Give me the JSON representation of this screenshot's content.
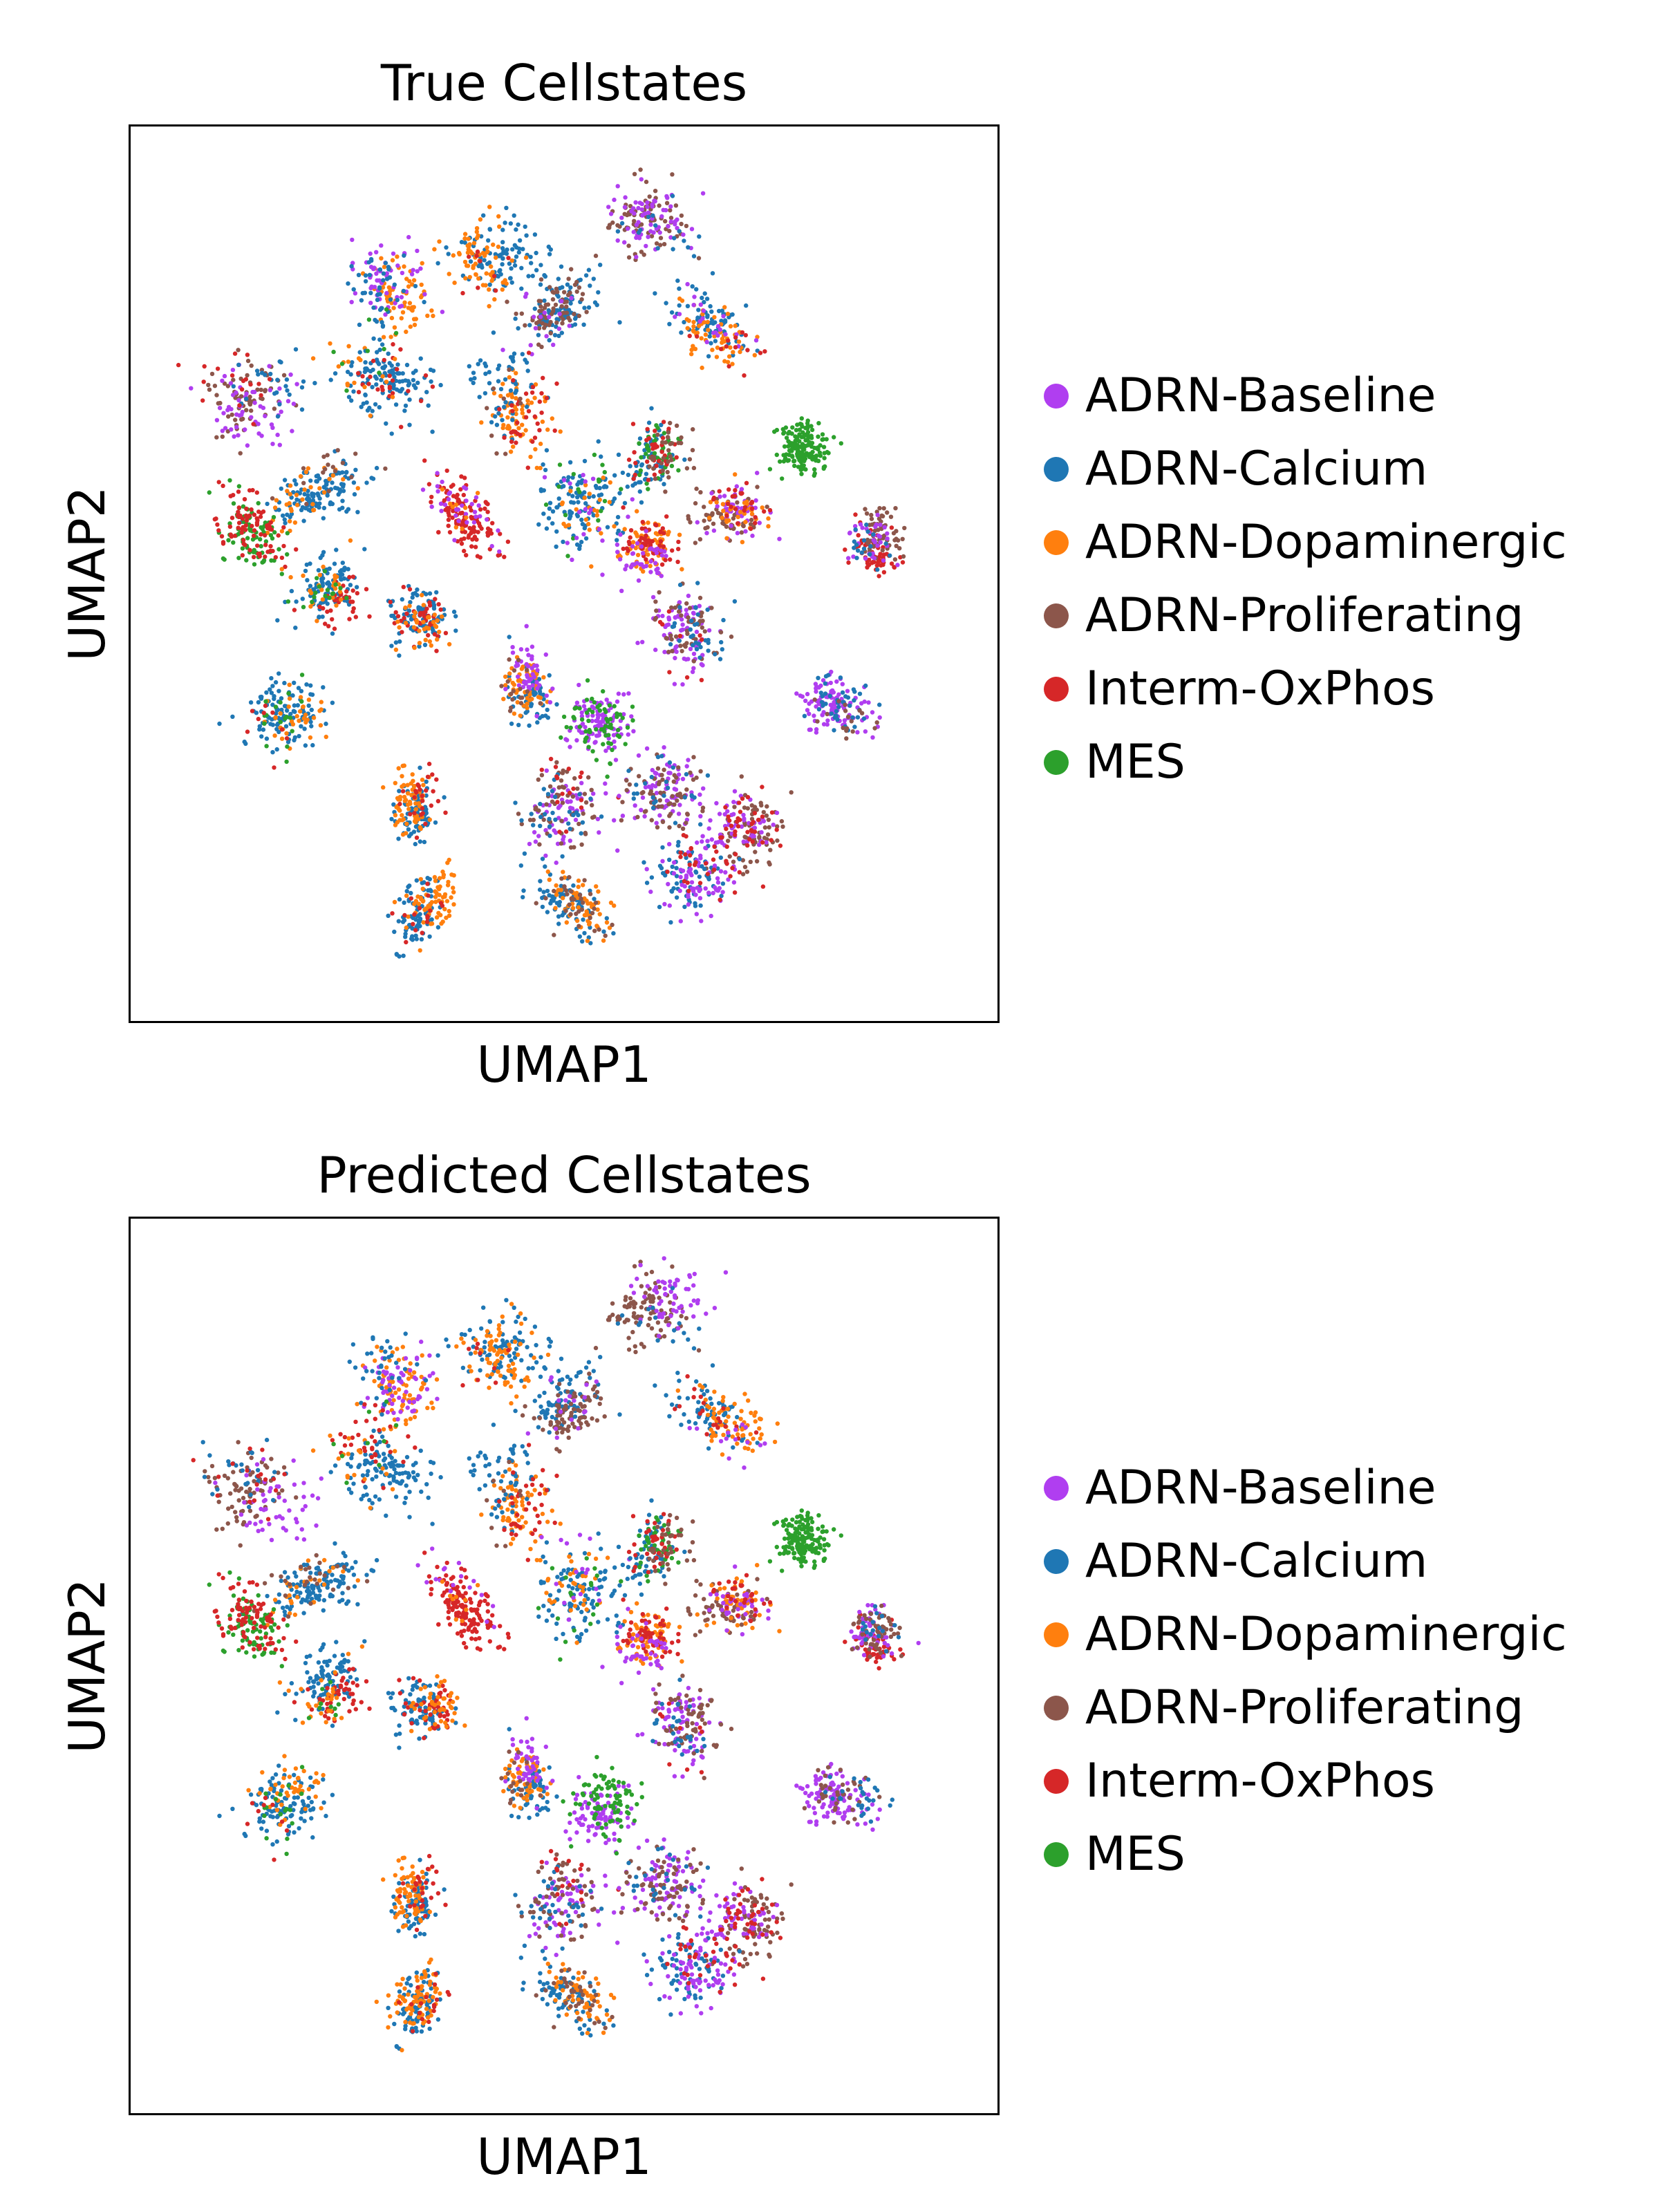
{
  "chart_data": [
    {
      "type": "scatter",
      "title": "True Cellstates",
      "xlabel": "UMAP1",
      "ylabel": "UMAP2",
      "xticks": [],
      "yticks": [],
      "grid": false,
      "legend_position": "right",
      "categories": [
        "ADRN-Baseline",
        "ADRN-Calcium",
        "ADRN-Dopaminergic",
        "ADRN-Proliferating",
        "Interm-OxPhos",
        "MES"
      ],
      "colors": [
        "#b03ef0",
        "#1f77b4",
        "#ff7f0e",
        "#8c564b",
        "#d62728",
        "#2ca02c"
      ],
      "xlim": [
        0,
        100
      ],
      "ylim": [
        0,
        100
      ],
      "clusters": [
        {
          "x": 62,
          "y": 94,
          "composition": {
            "ADRN-Proliferating": 0.5,
            "ADRN-Baseline": 0.4,
            "ADRN-Calcium": 0.1
          }
        },
        {
          "x": 41,
          "y": 89,
          "composition": {
            "ADRN-Calcium": 0.55,
            "ADRN-Dopaminergic": 0.4,
            "Interm-OxPhos": 0.05
          }
        },
        {
          "x": 27,
          "y": 85,
          "composition": {
            "ADRN-Dopaminergic": 0.4,
            "ADRN-Baseline": 0.35,
            "ADRN-Calcium": 0.25
          }
        },
        {
          "x": 50,
          "y": 82,
          "composition": {
            "ADRN-Calcium": 0.5,
            "ADRN-Proliferating": 0.4,
            "ADRN-Baseline": 0.1
          }
        },
        {
          "x": 70,
          "y": 80,
          "composition": {
            "ADRN-Calcium": 0.45,
            "ADRN-Dopaminergic": 0.35,
            "ADRN-Baseline": 0.12,
            "Interm-OxPhos": 0.08
          }
        },
        {
          "x": 26,
          "y": 75,
          "composition": {
            "ADRN-Calcium": 0.7,
            "Interm-OxPhos": 0.15,
            "ADRN-Dopaminergic": 0.1,
            "MES": 0.05
          }
        },
        {
          "x": 11,
          "y": 72,
          "composition": {
            "ADRN-Proliferating": 0.4,
            "ADRN-Baseline": 0.35,
            "ADRN-Calcium": 0.15,
            "Interm-OxPhos": 0.1
          }
        },
        {
          "x": 44,
          "y": 71,
          "composition": {
            "ADRN-Dopaminergic": 0.4,
            "ADRN-Calcium": 0.35,
            "Interm-OxPhos": 0.2,
            "ADRN-Proliferating": 0.05
          }
        },
        {
          "x": 18,
          "y": 61,
          "composition": {
            "ADRN-Calcium": 0.7,
            "ADRN-Dopaminergic": 0.2,
            "ADRN-Proliferating": 0.1
          }
        },
        {
          "x": 36,
          "y": 59,
          "composition": {
            "Interm-OxPhos": 0.75,
            "ADRN-Baseline": 0.2,
            "ADRN-Dopaminergic": 0.05
          }
        },
        {
          "x": 52,
          "y": 60,
          "composition": {
            "ADRN-Calcium": 0.65,
            "ADRN-Dopaminergic": 0.15,
            "MES": 0.1,
            "ADRN-Baseline": 0.1
          }
        },
        {
          "x": 62,
          "y": 65,
          "composition": {
            "ADRN-Calcium": 0.35,
            "MES": 0.25,
            "Interm-OxPhos": 0.2,
            "ADRN-Proliferating": 0.2
          }
        },
        {
          "x": 71,
          "y": 58,
          "composition": {
            "ADRN-Proliferating": 0.35,
            "ADRN-Baseline": 0.3,
            "ADRN-Dopaminergic": 0.2,
            "Interm-OxPhos": 0.15
          }
        },
        {
          "x": 80,
          "y": 66,
          "composition": {
            "MES": 1.0
          }
        },
        {
          "x": 90,
          "y": 54,
          "composition": {
            "Interm-OxPhos": 0.35,
            "ADRN-Proliferating": 0.35,
            "ADRN-Baseline": 0.2,
            "ADRN-Calcium": 0.1
          }
        },
        {
          "x": 10,
          "y": 55,
          "composition": {
            "MES": 0.5,
            "Interm-OxPhos": 0.5
          }
        },
        {
          "x": 20,
          "y": 47,
          "composition": {
            "ADRN-Calcium": 0.55,
            "Interm-OxPhos": 0.2,
            "ADRN-Dopaminergic": 0.15,
            "MES": 0.1
          }
        },
        {
          "x": 33,
          "y": 45,
          "composition": {
            "ADRN-Calcium": 0.55,
            "Interm-OxPhos": 0.25,
            "ADRN-Dopaminergic": 0.2
          }
        },
        {
          "x": 61,
          "y": 53,
          "composition": {
            "ADRN-Dopaminergic": 0.4,
            "Interm-OxPhos": 0.35,
            "ADRN-Baseline": 0.25
          }
        },
        {
          "x": 45,
          "y": 36,
          "composition": {
            "ADRN-Calcium": 0.35,
            "ADRN-Dopaminergic": 0.3,
            "ADRN-Baseline": 0.25,
            "ADRN-Proliferating": 0.1
          }
        },
        {
          "x": 66,
          "y": 42,
          "composition": {
            "ADRN-Baseline": 0.45,
            "ADRN-Proliferating": 0.3,
            "ADRN-Calcium": 0.2,
            "Interm-OxPhos": 0.05
          }
        },
        {
          "x": 15,
          "y": 32,
          "composition": {
            "ADRN-Calcium": 0.65,
            "ADRN-Dopaminergic": 0.2,
            "MES": 0.1,
            "Interm-OxPhos": 0.05
          }
        },
        {
          "x": 54,
          "y": 33,
          "composition": {
            "ADRN-Baseline": 0.6,
            "MES": 0.4
          }
        },
        {
          "x": 85,
          "y": 34,
          "composition": {
            "ADRN-Baseline": 0.65,
            "ADRN-Calcium": 0.25,
            "ADRN-Proliferating": 0.1
          }
        },
        {
          "x": 31,
          "y": 22,
          "composition": {
            "ADRN-Calcium": 0.45,
            "ADRN-Dopaminergic": 0.4,
            "Interm-OxPhos": 0.15
          }
        },
        {
          "x": 50,
          "y": 22,
          "composition": {
            "ADRN-Baseline": 0.35,
            "ADRN-Proliferating": 0.35,
            "ADRN-Calcium": 0.2,
            "Interm-OxPhos": 0.1
          }
        },
        {
          "x": 64,
          "y": 22,
          "composition": {
            "ADRN-Baseline": 0.45,
            "ADRN-Proliferating": 0.4,
            "ADRN-Calcium": 0.15
          }
        },
        {
          "x": 74,
          "y": 19,
          "composition": {
            "ADRN-Proliferating": 0.45,
            "ADRN-Baseline": 0.35,
            "Interm-OxPhos": 0.2
          }
        },
        {
          "x": 52,
          "y": 10,
          "composition": {
            "ADRN-Calcium": 0.45,
            "ADRN-Dopaminergic": 0.35,
            "ADRN-Proliferating": 0.2
          }
        },
        {
          "x": 32,
          "y": 9,
          "composition": {
            "ADRN-Calcium": 0.5,
            "ADRN-Dopaminergic": 0.4,
            "Interm-OxPhos": 0.1
          }
        },
        {
          "x": 66,
          "y": 12,
          "composition": {
            "ADRN-Calcium": 0.4,
            "ADRN-Baseline": 0.4,
            "Interm-OxPhos": 0.2
          }
        }
      ]
    },
    {
      "type": "scatter",
      "title": "Predicted Cellstates",
      "xlabel": "UMAP1",
      "ylabel": "UMAP2",
      "xticks": [],
      "yticks": [],
      "grid": false,
      "legend_position": "right",
      "categories": [
        "ADRN-Baseline",
        "ADRN-Calcium",
        "ADRN-Dopaminergic",
        "ADRN-Proliferating",
        "Interm-OxPhos",
        "MES"
      ],
      "colors": [
        "#b03ef0",
        "#1f77b4",
        "#ff7f0e",
        "#8c564b",
        "#d62728",
        "#2ca02c"
      ],
      "xlim": [
        0,
        100
      ],
      "ylim": [
        0,
        100
      ],
      "clusters": [
        {
          "x": 62,
          "y": 94,
          "composition": {
            "ADRN-Proliferating": 0.55,
            "ADRN-Baseline": 0.35,
            "ADRN-Calcium": 0.1
          }
        },
        {
          "x": 41,
          "y": 89,
          "composition": {
            "ADRN-Calcium": 0.5,
            "ADRN-Dopaminergic": 0.45,
            "Interm-OxPhos": 0.05
          }
        },
        {
          "x": 27,
          "y": 85,
          "composition": {
            "ADRN-Dopaminergic": 0.45,
            "ADRN-Baseline": 0.35,
            "ADRN-Calcium": 0.2
          }
        },
        {
          "x": 50,
          "y": 82,
          "composition": {
            "ADRN-Calcium": 0.45,
            "ADRN-Proliferating": 0.45,
            "ADRN-Baseline": 0.1
          }
        },
        {
          "x": 70,
          "y": 80,
          "composition": {
            "ADRN-Calcium": 0.4,
            "ADRN-Dopaminergic": 0.4,
            "Interm-OxPhos": 0.12,
            "ADRN-Baseline": 0.08
          }
        },
        {
          "x": 26,
          "y": 75,
          "composition": {
            "ADRN-Calcium": 0.65,
            "Interm-OxPhos": 0.2,
            "ADRN-Dopaminergic": 0.1,
            "MES": 0.05
          }
        },
        {
          "x": 11,
          "y": 72,
          "composition": {
            "ADRN-Proliferating": 0.45,
            "ADRN-Baseline": 0.3,
            "ADRN-Calcium": 0.15,
            "Interm-OxPhos": 0.1
          }
        },
        {
          "x": 44,
          "y": 71,
          "composition": {
            "ADRN-Dopaminergic": 0.4,
            "ADRN-Calcium": 0.35,
            "Interm-OxPhos": 0.2,
            "ADRN-Proliferating": 0.05
          }
        },
        {
          "x": 18,
          "y": 61,
          "composition": {
            "ADRN-Calcium": 0.7,
            "ADRN-Dopaminergic": 0.15,
            "ADRN-Proliferating": 0.15
          }
        },
        {
          "x": 36,
          "y": 59,
          "composition": {
            "Interm-OxPhos": 0.85,
            "ADRN-Baseline": 0.1,
            "ADRN-Dopaminergic": 0.05
          }
        },
        {
          "x": 52,
          "y": 60,
          "composition": {
            "ADRN-Calcium": 0.6,
            "ADRN-Dopaminergic": 0.2,
            "MES": 0.1,
            "ADRN-Baseline": 0.1
          }
        },
        {
          "x": 62,
          "y": 65,
          "composition": {
            "ADRN-Calcium": 0.35,
            "MES": 0.25,
            "Interm-OxPhos": 0.2,
            "ADRN-Proliferating": 0.2
          }
        },
        {
          "x": 71,
          "y": 58,
          "composition": {
            "ADRN-Proliferating": 0.35,
            "ADRN-Dopaminergic": 0.3,
            "ADRN-Baseline": 0.2,
            "Interm-OxPhos": 0.15
          }
        },
        {
          "x": 80,
          "y": 66,
          "composition": {
            "MES": 1.0
          }
        },
        {
          "x": 90,
          "y": 54,
          "composition": {
            "Interm-OxPhos": 0.3,
            "ADRN-Baseline": 0.3,
            "ADRN-Proliferating": 0.3,
            "ADRN-Calcium": 0.1
          }
        },
        {
          "x": 10,
          "y": 55,
          "composition": {
            "MES": 0.5,
            "Interm-OxPhos": 0.5
          }
        },
        {
          "x": 20,
          "y": 47,
          "composition": {
            "ADRN-Calcium": 0.55,
            "Interm-OxPhos": 0.25,
            "ADRN-Dopaminergic": 0.15,
            "MES": 0.05
          }
        },
        {
          "x": 33,
          "y": 45,
          "composition": {
            "ADRN-Calcium": 0.5,
            "Interm-OxPhos": 0.25,
            "ADRN-Dopaminergic": 0.25
          }
        },
        {
          "x": 61,
          "y": 53,
          "composition": {
            "ADRN-Dopaminergic": 0.4,
            "Interm-OxPhos": 0.35,
            "ADRN-Baseline": 0.25
          }
        },
        {
          "x": 45,
          "y": 36,
          "composition": {
            "ADRN-Calcium": 0.35,
            "ADRN-Dopaminergic": 0.3,
            "ADRN-Baseline": 0.25,
            "ADRN-Proliferating": 0.1
          }
        },
        {
          "x": 66,
          "y": 42,
          "composition": {
            "ADRN-Baseline": 0.45,
            "ADRN-Proliferating": 0.35,
            "ADRN-Calcium": 0.15,
            "Interm-OxPhos": 0.05
          }
        },
        {
          "x": 15,
          "y": 32,
          "composition": {
            "ADRN-Calcium": 0.6,
            "ADRN-Dopaminergic": 0.25,
            "MES": 0.1,
            "Interm-OxPhos": 0.05
          }
        },
        {
          "x": 54,
          "y": 33,
          "composition": {
            "ADRN-Baseline": 0.5,
            "MES": 0.5
          }
        },
        {
          "x": 85,
          "y": 34,
          "composition": {
            "ADRN-Baseline": 0.65,
            "ADRN-Proliferating": 0.2,
            "ADRN-Calcium": 0.15
          }
        },
        {
          "x": 31,
          "y": 22,
          "composition": {
            "ADRN-Calcium": 0.45,
            "ADRN-Dopaminergic": 0.4,
            "Interm-OxPhos": 0.15
          }
        },
        {
          "x": 50,
          "y": 22,
          "composition": {
            "ADRN-Baseline": 0.35,
            "ADRN-Proliferating": 0.35,
            "ADRN-Calcium": 0.2,
            "Interm-OxPhos": 0.1
          }
        },
        {
          "x": 64,
          "y": 22,
          "composition": {
            "ADRN-Baseline": 0.45,
            "ADRN-Proliferating": 0.4,
            "ADRN-Calcium": 0.15
          }
        },
        {
          "x": 74,
          "y": 19,
          "composition": {
            "ADRN-Proliferating": 0.45,
            "ADRN-Baseline": 0.35,
            "Interm-OxPhos": 0.2
          }
        },
        {
          "x": 52,
          "y": 10,
          "composition": {
            "ADRN-Calcium": 0.45,
            "ADRN-Dopaminergic": 0.35,
            "ADRN-Proliferating": 0.2
          }
        },
        {
          "x": 32,
          "y": 9,
          "composition": {
            "ADRN-Calcium": 0.45,
            "ADRN-Dopaminergic": 0.45,
            "Interm-OxPhos": 0.1
          }
        },
        {
          "x": 66,
          "y": 12,
          "composition": {
            "ADRN-Calcium": 0.4,
            "ADRN-Baseline": 0.4,
            "Interm-OxPhos": 0.2
          }
        }
      ]
    }
  ]
}
